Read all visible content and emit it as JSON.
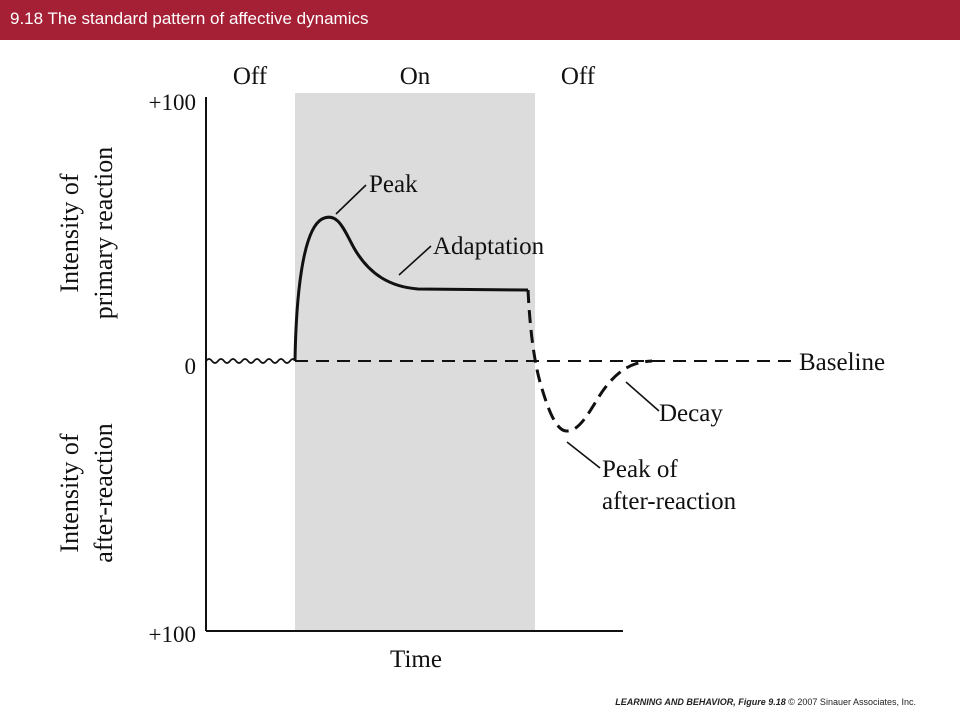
{
  "header": {
    "title": "9.18  The standard pattern of affective dynamics",
    "bar_color": "#a51f35"
  },
  "diagram": {
    "phases": [
      "Off",
      "On",
      "Off"
    ],
    "y_ticks": {
      "top": "+100",
      "middle": "0",
      "bottom": "+100"
    },
    "y_axis_labels": {
      "upper_line1": "Intensity of",
      "upper_line2": "primary reaction",
      "lower_line1": "Intensity of",
      "lower_line2": "after-reaction"
    },
    "x_axis_label": "Time",
    "annotations": {
      "peak": "Peak",
      "adaptation": "Adaptation",
      "baseline": "Baseline",
      "decay": "Decay",
      "after_peak_line1": "Peak of",
      "after_peak_line2": "after-reaction"
    },
    "stimulus_on_color": "#dcdcdc"
  },
  "footer": {
    "book": "LEARNING AND BEHAVIOR, Figure 9.18",
    "copyright": "© 2007 Sinauer Associates, Inc."
  }
}
